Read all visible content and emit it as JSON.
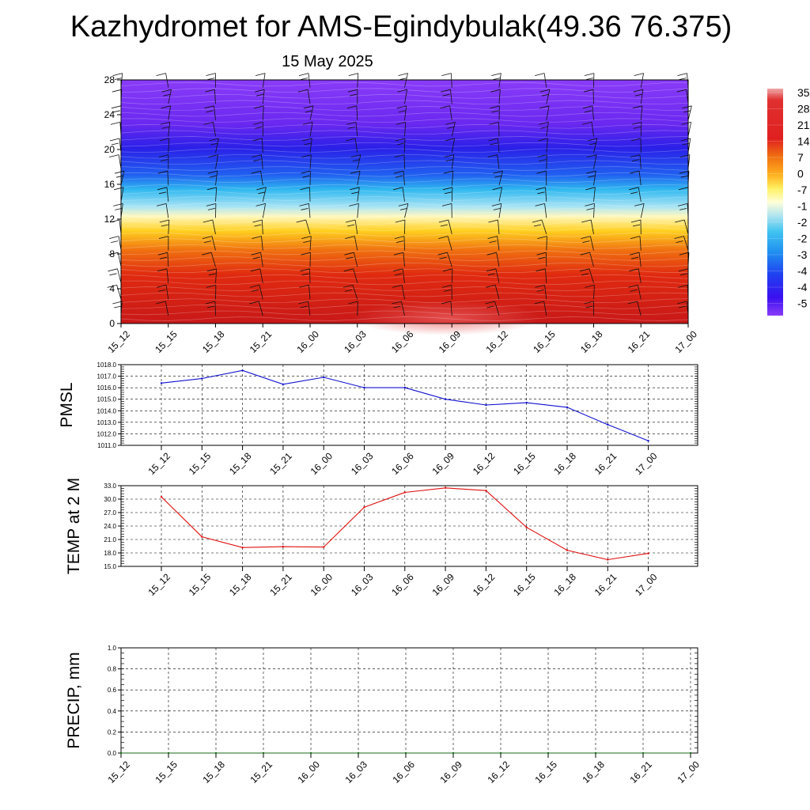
{
  "header": {
    "title": "Kazhydromet for AMS-Egindybulak(49.36 76.375)",
    "date": "15 May 2025"
  },
  "time_labels": [
    "15_12",
    "15_15",
    "15_18",
    "15_21",
    "16_00",
    "16_03",
    "16_06",
    "16_09",
    "16_12",
    "16_15",
    "16_18",
    "16_21",
    "17_00"
  ],
  "chart_data": [
    {
      "type": "heatmap",
      "title": "Kazhydromet for AMS-Egindybulak(49.36 76.375)",
      "subtitle": "15 May 2025",
      "x": [
        "15_12",
        "15_15",
        "15_18",
        "15_21",
        "16_00",
        "16_03",
        "16_06",
        "16_09",
        "16_12",
        "16_15",
        "16_18",
        "16_21",
        "17_00"
      ],
      "y_ticks": [
        0,
        4,
        8,
        12,
        16,
        20,
        24,
        28
      ],
      "ylim": [
        0,
        28
      ],
      "colorbar_labels": [
        "35",
        "28",
        "21",
        "14",
        "7",
        "0",
        "-7",
        "-1",
        "-2",
        "-2",
        "-3",
        "-4",
        "-4",
        "-5"
      ],
      "colors": [
        "#f0a8a8",
        "#e02020",
        "#e85010",
        "#f08a10",
        "#ffd020",
        "#fff060",
        "#ffffd8",
        "#b0e4f0",
        "#40c4f0",
        "#2090f0",
        "#2040f0",
        "#3a10f0",
        "#7a28f0",
        "#8a3cf8"
      ]
    },
    {
      "type": "line",
      "ylabel": "PMSL",
      "x": [
        "15_12",
        "15_15",
        "15_18",
        "15_21",
        "16_00",
        "16_03",
        "16_06",
        "16_09",
        "16_12",
        "16_15",
        "16_18",
        "16_21",
        "17_00"
      ],
      "ylim": [
        1011.0,
        1018.0
      ],
      "y_ticks": [
        "1011.0",
        "1012.0",
        "1013.0",
        "1014.0",
        "1015.0",
        "1016.0",
        "1017.0",
        "1018.0"
      ],
      "series": [
        {
          "values": [
            1016.4,
            1016.8,
            1017.5,
            1016.3,
            1016.9,
            1016.0,
            1016.0,
            1015.0,
            1014.5,
            1014.7,
            1014.3,
            1012.8,
            1011.4
          ],
          "color": "#1010d0"
        }
      ],
      "grid": true
    },
    {
      "type": "line",
      "ylabel": "TEMP at 2 M",
      "x": [
        "15_12",
        "15_15",
        "15_18",
        "15_21",
        "16_00",
        "16_03",
        "16_06",
        "16_09",
        "16_12",
        "16_15",
        "16_18",
        "16_21",
        "17_00"
      ],
      "ylim": [
        15.0,
        33.0
      ],
      "y_ticks": [
        "15.0",
        "18.0",
        "21.0",
        "24.0",
        "27.0",
        "30.0",
        "33.0"
      ],
      "series": [
        {
          "values": [
            30.5,
            21.6,
            19.2,
            19.4,
            19.3,
            28.2,
            31.5,
            32.5,
            31.9,
            23.7,
            18.6,
            16.5,
            17.9
          ],
          "color": "#e01010"
        }
      ],
      "grid": true
    },
    {
      "type": "line",
      "ylabel": "PRECIP, mm",
      "x": [
        "15_12",
        "15_15",
        "15_18",
        "15_21",
        "16_00",
        "16_03",
        "16_06",
        "16_09",
        "16_12",
        "16_15",
        "16_18",
        "16_21",
        "17_00"
      ],
      "ylim": [
        0.0,
        1.0
      ],
      "y_ticks": [
        "0.0",
        "0.2",
        "0.4",
        "0.6",
        "0.8",
        "1.0"
      ],
      "series": [
        {
          "values": [
            0,
            0,
            0,
            0,
            0,
            0,
            0,
            0,
            0,
            0,
            0,
            0,
            0
          ],
          "color": "#1a6a1a"
        }
      ],
      "grid": true
    }
  ]
}
